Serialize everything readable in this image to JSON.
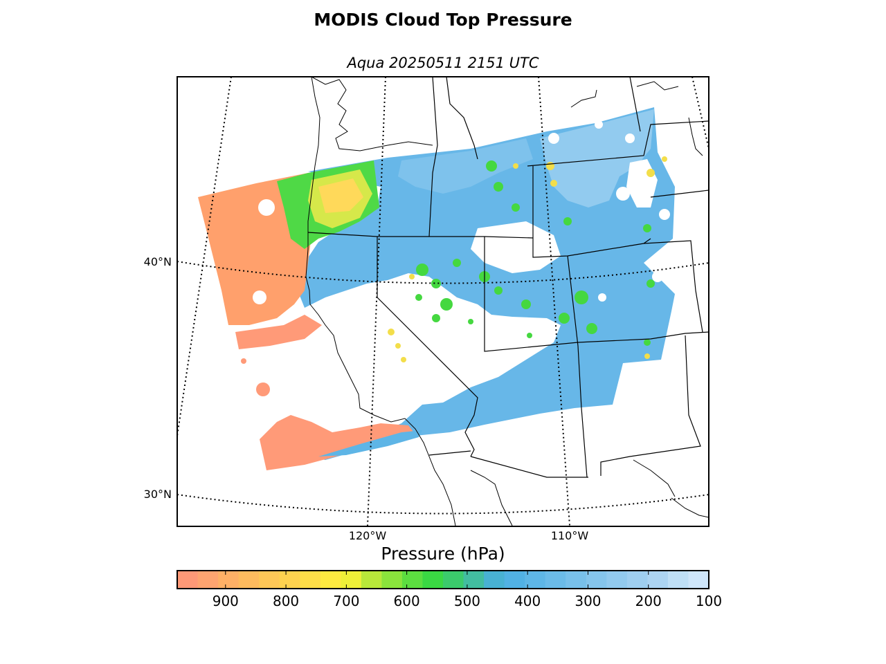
{
  "title": "MODIS Cloud Top Pressure",
  "subtitle": "Aqua 20250511 2151 UTC",
  "map": {
    "lat_labels": [
      "40°N",
      "30°N"
    ],
    "lon_labels": [
      "120°W",
      "110°W"
    ],
    "gridlines": "dotted",
    "coastlines": true,
    "state_borders": true
  },
  "colorbar": {
    "label": "Pressure (hPa)",
    "range": [
      980,
      100
    ],
    "ticks": [
      "900",
      "800",
      "700",
      "600",
      "500",
      "400",
      "300",
      "200",
      "100"
    ],
    "colors": [
      "#ff9977",
      "#ffa470",
      "#ffb066",
      "#ffbb5e",
      "#ffc757",
      "#ffd24f",
      "#ffde48",
      "#ffea40",
      "#eef038",
      "#b8e83a",
      "#8ae43c",
      "#5cde40",
      "#3ad843",
      "#3bcb6c",
      "#42bda0",
      "#48b1d3",
      "#51b1e4",
      "#5eb6e6",
      "#6bbbe8",
      "#78c0ea",
      "#85c5ec",
      "#92caee",
      "#9fcff0",
      "#acd4f2",
      "#bfdff6",
      "#cfe6fa"
    ]
  }
}
